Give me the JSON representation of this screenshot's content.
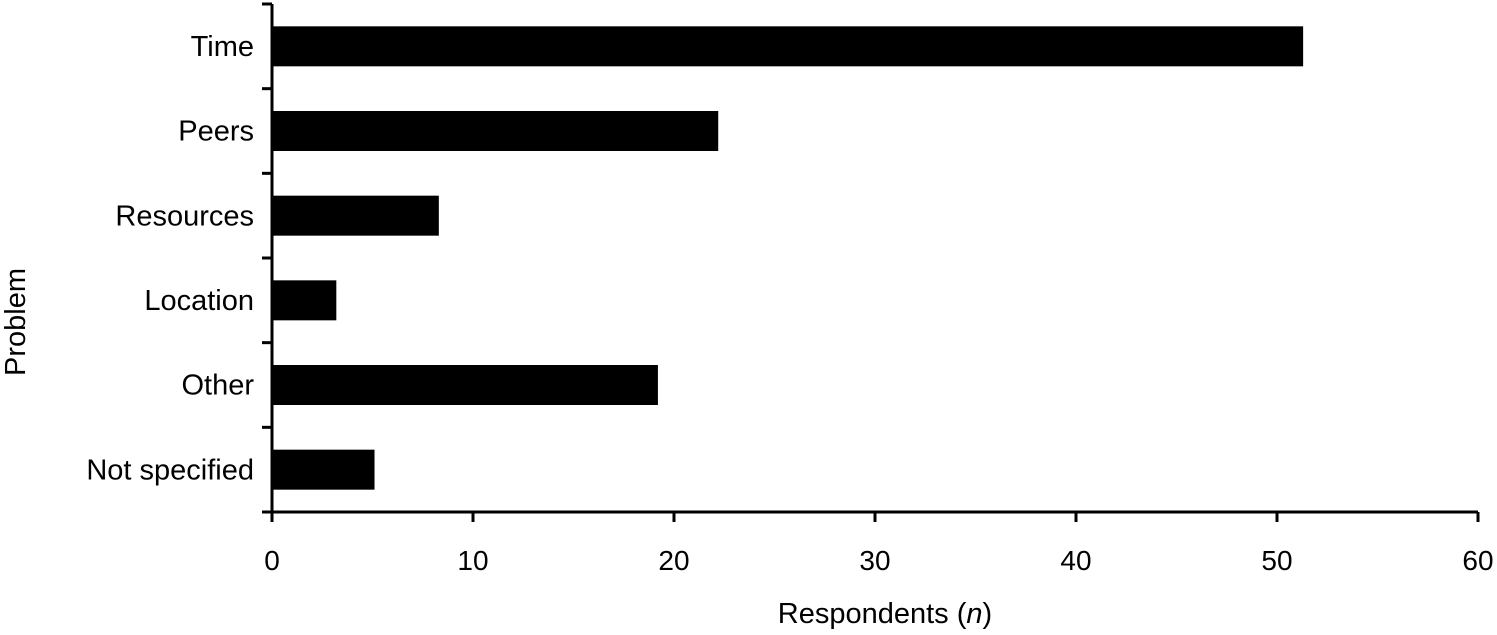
{
  "chart_data": {
    "type": "bar",
    "orientation": "horizontal",
    "categories": [
      "Time",
      "Peers",
      "Resources",
      "Location",
      "Other",
      "Not specified"
    ],
    "values": [
      51.3,
      22.2,
      8.3,
      3.2,
      19.2,
      5.1
    ],
    "xlabel_prefix": "Respondents (",
    "xlabel_italic": "n",
    "xlabel_suffix": ")",
    "ylabel": "Problem",
    "xlim": [
      0,
      60
    ],
    "xticks": [
      0,
      10,
      20,
      30,
      40,
      50,
      60
    ],
    "grid": false,
    "bar_color": "#000000"
  }
}
